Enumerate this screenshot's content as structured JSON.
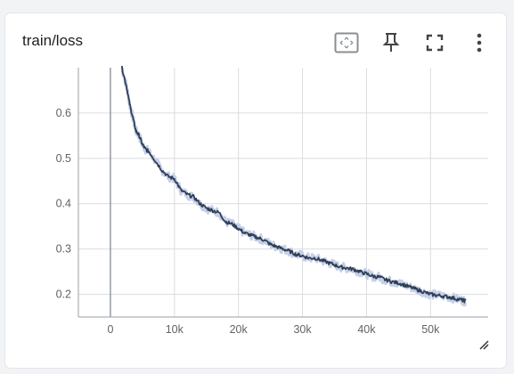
{
  "card": {
    "title": "train/loss"
  },
  "toolbar": {
    "icons": [
      "fit-domain-icon",
      "pin-icon",
      "fullscreen-icon",
      "more-vert-icon"
    ]
  },
  "colors": {
    "smoothed": "#2f3f56",
    "raw": "#c5d0e8",
    "grid": "#dadce0",
    "axis": "#9aa0a6",
    "text": "#5f6368"
  },
  "chart_data": {
    "type": "line",
    "xlim": [
      -5000,
      59000
    ],
    "ylim": [
      0.15,
      0.7
    ],
    "x_ticks": [
      0,
      10000,
      20000,
      30000,
      40000,
      50000
    ],
    "x_tick_labels": [
      "0",
      "10k",
      "20k",
      "30k",
      "40k",
      "50k"
    ],
    "y_ticks": [
      0.2,
      0.3,
      0.4,
      0.5,
      0.6
    ],
    "y_tick_labels": [
      "0.2",
      "0.3",
      "0.4",
      "0.5",
      "0.6"
    ],
    "grid": true,
    "series": [
      {
        "x": [
          1800,
          2500,
          3000,
          3500,
          4000,
          4500,
          5000,
          5500,
          6000,
          7000,
          8000,
          9000,
          10000,
          11000,
          12000,
          13000,
          14000,
          15000,
          16000,
          17000,
          18000,
          19000,
          20000,
          21000,
          22000,
          23000,
          24000,
          25000,
          26000,
          27000,
          28000,
          29000,
          30000,
          31000,
          32000,
          33000,
          34000,
          35000,
          36000,
          37000,
          38000,
          39000,
          40000,
          41000,
          42000,
          43000,
          44000,
          45000,
          46000,
          47000,
          48000,
          49000,
          50000,
          51000,
          52000,
          53000,
          54000,
          55000,
          55500
        ],
        "y": [
          0.7,
          0.66,
          0.62,
          0.59,
          0.56,
          0.55,
          0.53,
          0.52,
          0.515,
          0.495,
          0.475,
          0.46,
          0.455,
          0.43,
          0.42,
          0.415,
          0.4,
          0.39,
          0.385,
          0.38,
          0.36,
          0.355,
          0.345,
          0.335,
          0.33,
          0.325,
          0.32,
          0.31,
          0.305,
          0.3,
          0.295,
          0.288,
          0.285,
          0.28,
          0.28,
          0.275,
          0.27,
          0.265,
          0.26,
          0.258,
          0.255,
          0.25,
          0.245,
          0.24,
          0.238,
          0.232,
          0.228,
          0.225,
          0.22,
          0.215,
          0.21,
          0.205,
          0.2,
          0.198,
          0.196,
          0.194,
          0.19,
          0.187,
          0.185
        ]
      }
    ]
  }
}
